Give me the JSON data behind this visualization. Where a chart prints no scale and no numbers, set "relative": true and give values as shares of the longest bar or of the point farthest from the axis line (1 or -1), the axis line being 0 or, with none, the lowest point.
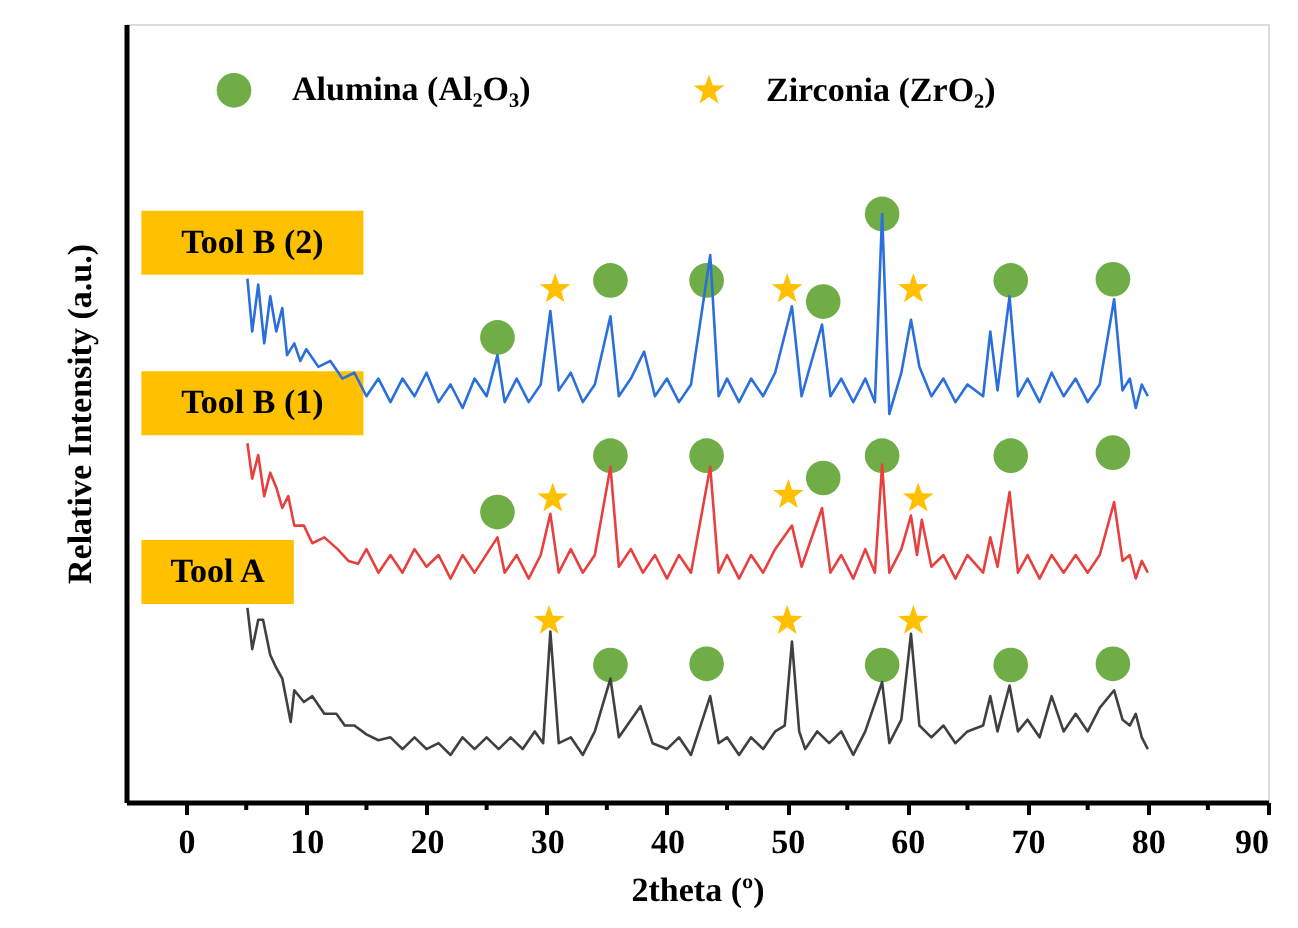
{
  "chart_data": {
    "type": "line",
    "relative": true,
    "xlabel": "2theta (º)",
    "ylabel": "Relative Intensity (a.u.)",
    "xlim": [
      -5,
      90
    ],
    "xticks": [
      0,
      {
        "value": 5,
        "label": null
      },
      10,
      {
        "value": 15,
        "label": null
      },
      20,
      {
        "value": 25,
        "label": null
      },
      30,
      {
        "value": 35,
        "label": null
      },
      40,
      {
        "value": 45,
        "label": null
      },
      50,
      {
        "value": 55,
        "label": null
      },
      60,
      {
        "value": 65,
        "label": null
      },
      70,
      {
        "value": 75,
        "label": null
      },
      80,
      {
        "value": 85,
        "label": null
      },
      90
    ],
    "tick_labels": "x",
    "grid": false,
    "legend": "top",
    "series": [
      {
        "name": "Tool B (2)",
        "color": "#2a6fdb",
        "x": [
          5.1,
          5.5,
          6,
          6.5,
          7,
          7.5,
          8,
          8.4,
          9,
          9.5,
          10,
          11,
          12,
          13,
          14,
          15,
          16,
          17,
          18,
          19,
          20,
          21,
          22,
          23,
          24,
          25,
          25.9,
          26.5,
          27.5,
          28.5,
          29.5,
          30.3,
          31,
          32,
          33,
          34,
          35.3,
          36,
          37,
          38.1,
          39,
          40,
          41,
          42,
          43.6,
          44.3,
          45,
          46,
          47,
          48,
          49,
          50.4,
          51.2,
          52.9,
          53.6,
          54.5,
          55.5,
          56.5,
          57.3,
          57.9,
          58.5,
          59.5,
          60.3,
          61,
          62,
          63,
          64,
          65,
          66.3,
          66.9,
          67.5,
          68.5,
          69.2,
          70,
          71,
          72,
          73,
          74,
          75,
          76,
          77.2,
          77.9,
          78.5,
          79,
          79.5,
          80
        ],
        "values": [
          0.89,
          0.8,
          0.88,
          0.78,
          0.86,
          0.8,
          0.84,
          0.76,
          0.78,
          0.75,
          0.77,
          0.74,
          0.75,
          0.72,
          0.73,
          0.69,
          0.72,
          0.68,
          0.72,
          0.69,
          0.73,
          0.68,
          0.71,
          0.67,
          0.72,
          0.69,
          0.76,
          0.68,
          0.72,
          0.68,
          0.71,
          0.835,
          0.7,
          0.73,
          0.68,
          0.71,
          0.826,
          0.69,
          0.72,
          0.766,
          0.69,
          0.72,
          0.68,
          0.71,
          0.93,
          0.69,
          0.72,
          0.68,
          0.72,
          0.69,
          0.73,
          0.843,
          0.69,
          0.812,
          0.69,
          0.72,
          0.68,
          0.72,
          0.68,
          1.0,
          0.66,
          0.73,
          0.82,
          0.74,
          0.69,
          0.72,
          0.68,
          0.71,
          0.69,
          0.8,
          0.7,
          0.86,
          0.69,
          0.72,
          0.68,
          0.73,
          0.69,
          0.72,
          0.68,
          0.71,
          0.855,
          0.7,
          0.72,
          0.67,
          0.71,
          0.69
        ]
      },
      {
        "name": "Tool B (1)",
        "color": "#e8403f",
        "x": [
          5.1,
          5.5,
          6,
          6.5,
          7,
          7.5,
          8,
          8.5,
          9,
          9.8,
          10.5,
          11.5,
          12.6,
          13.5,
          14.3,
          15,
          16,
          17,
          18,
          19,
          20,
          21,
          22,
          23,
          24,
          25.9,
          26.5,
          27.5,
          28.5,
          29.5,
          30.3,
          31,
          32,
          33,
          34,
          35.3,
          36,
          37,
          38,
          39,
          40,
          41,
          42,
          43.6,
          44.3,
          45,
          46,
          47,
          48,
          49,
          50.4,
          51.2,
          52.9,
          53.6,
          54.5,
          55.5,
          56.5,
          57.3,
          57.9,
          58.5,
          59.5,
          60.3,
          60.8,
          61.2,
          62,
          63,
          64,
          65,
          66.3,
          66.9,
          67.5,
          68.5,
          69.2,
          70,
          71,
          72,
          73,
          74,
          75,
          76,
          77.2,
          77.9,
          78.5,
          79,
          79.5,
          80
        ],
        "values": [
          0.61,
          0.55,
          0.59,
          0.52,
          0.56,
          0.535,
          0.5,
          0.52,
          0.47,
          0.47,
          0.44,
          0.45,
          0.43,
          0.41,
          0.405,
          0.43,
          0.39,
          0.42,
          0.39,
          0.43,
          0.4,
          0.42,
          0.38,
          0.42,
          0.39,
          0.45,
          0.39,
          0.42,
          0.38,
          0.42,
          0.49,
          0.39,
          0.43,
          0.39,
          0.42,
          0.57,
          0.4,
          0.43,
          0.39,
          0.42,
          0.38,
          0.42,
          0.39,
          0.57,
          0.39,
          0.42,
          0.38,
          0.42,
          0.39,
          0.43,
          0.47,
          0.4,
          0.5,
          0.39,
          0.42,
          0.38,
          0.43,
          0.39,
          0.574,
          0.39,
          0.43,
          0.487,
          0.42,
          0.48,
          0.4,
          0.42,
          0.38,
          0.42,
          0.39,
          0.45,
          0.4,
          0.527,
          0.39,
          0.42,
          0.38,
          0.42,
          0.39,
          0.42,
          0.39,
          0.42,
          0.51,
          0.41,
          0.42,
          0.38,
          0.41,
          0.39
        ]
      },
      {
        "name": "Tool A",
        "color": "#404040",
        "x": [
          5.1,
          5.5,
          6,
          6.4,
          7,
          7.5,
          8,
          8.7,
          9,
          9.8,
          10.5,
          11.5,
          12.5,
          13.2,
          14,
          15,
          16,
          17,
          18,
          19,
          20,
          21,
          22,
          23,
          24,
          25,
          26,
          27,
          28,
          29,
          29.7,
          30.3,
          31,
          32,
          33,
          34,
          35.3,
          36,
          37.8,
          38.8,
          40,
          41,
          42,
          43.6,
          44.3,
          45,
          46,
          47,
          48,
          49,
          49.8,
          50.4,
          51,
          51.5,
          52.5,
          53.5,
          54.5,
          55.5,
          56.5,
          57.9,
          58.5,
          59.5,
          60.3,
          61,
          62,
          63,
          64,
          65,
          66.3,
          66.9,
          67.5,
          68.5,
          69.2,
          70,
          71,
          72,
          73,
          74,
          75,
          76,
          77.2,
          77.9,
          78.5,
          79,
          79.5,
          80
        ],
        "values": [
          0.33,
          0.26,
          0.31,
          0.31,
          0.25,
          0.228,
          0.21,
          0.136,
          0.19,
          0.17,
          0.18,
          0.15,
          0.15,
          0.13,
          0.13,
          0.115,
          0.105,
          0.11,
          0.09,
          0.11,
          0.09,
          0.1,
          0.08,
          0.11,
          0.09,
          0.11,
          0.09,
          0.11,
          0.09,
          0.12,
          0.1,
          0.29,
          0.1,
          0.11,
          0.08,
          0.12,
          0.21,
          0.11,
          0.163,
          0.1,
          0.09,
          0.11,
          0.08,
          0.18,
          0.1,
          0.11,
          0.08,
          0.11,
          0.09,
          0.12,
          0.13,
          0.273,
          0.12,
          0.09,
          0.12,
          0.1,
          0.12,
          0.08,
          0.12,
          0.204,
          0.1,
          0.14,
          0.286,
          0.13,
          0.11,
          0.13,
          0.1,
          0.12,
          0.13,
          0.18,
          0.12,
          0.198,
          0.12,
          0.14,
          0.11,
          0.18,
          0.12,
          0.15,
          0.12,
          0.16,
          0.19,
          0.14,
          0.13,
          0.15,
          0.11,
          0.09
        ]
      },
      {
        "type": "scatter",
        "name": "Alumina (Al₂O₃)",
        "color": "#70ad47",
        "marker": "circle",
        "x": [
          25.9,
          35.3,
          43.3,
          53.0,
          57.9,
          68.6,
          77.1,
          25.9,
          35.3,
          43.3,
          53.0,
          57.9,
          68.6,
          77.1,
          35.3,
          43.3,
          57.9,
          68.6,
          77.1
        ],
        "values": [
          0.79,
          0.887,
          0.887,
          0.851,
          1.0,
          0.887,
          0.889,
          0.493,
          0.589,
          0.589,
          0.551,
          0.589,
          0.589,
          0.594,
          0.233,
          0.235,
          0.233,
          0.233,
          0.235
        ]
      },
      {
        "type": "scatter",
        "name": "Zirconia (ZrO₂)",
        "color": "#ffc000",
        "marker": "star",
        "x": [
          30.7,
          50.0,
          60.5,
          30.5,
          50.1,
          60.9,
          30.2,
          50.0,
          60.5
        ],
        "values": [
          0.872,
          0.872,
          0.872,
          0.516,
          0.522,
          0.516,
          0.308,
          0.308,
          0.308
        ]
      }
    ]
  }
}
